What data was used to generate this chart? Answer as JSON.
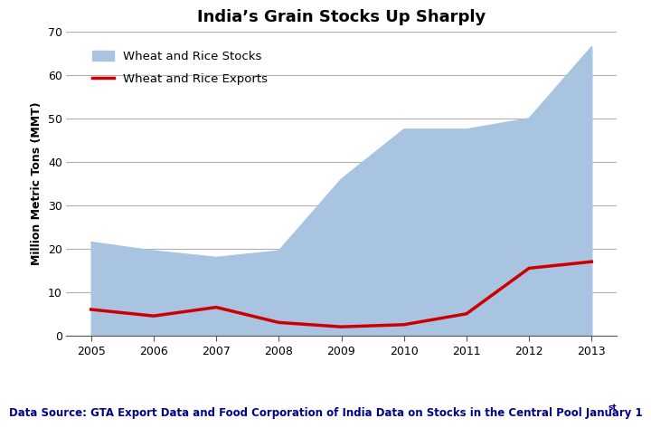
{
  "title": "India’s Grain Stocks Up Sharply",
  "ylabel": "Million Metric Tons (MMT)",
  "footnote": "Data Source: GTA Export Data and Food Corporation of India Data on Stocks in the Central Pool January 1",
  "footnote_super": "st",
  "years": [
    2005,
    2006,
    2007,
    2008,
    2009,
    2010,
    2011,
    2012,
    2013
  ],
  "stocks": [
    21.5,
    19.5,
    18.0,
    19.5,
    36.0,
    47.5,
    47.5,
    50.0,
    66.5
  ],
  "exports": [
    6.0,
    4.5,
    6.5,
    3.0,
    2.0,
    2.5,
    5.0,
    15.5,
    17.0
  ],
  "stocks_fill_color": "#a8c4e0",
  "exports_line_color": "#cc0000",
  "legend_stocks_label": "Wheat and Rice Stocks",
  "legend_exports_label": "Wheat and Rice Exports",
  "ylim": [
    0,
    70
  ],
  "yticks": [
    0,
    10,
    20,
    30,
    40,
    50,
    60,
    70
  ],
  "grid_color": "#b0b0b0",
  "background_color": "#ffffff",
  "title_fontsize": 13,
  "axis_label_fontsize": 9,
  "tick_fontsize": 9,
  "footnote_fontsize": 8.5,
  "exports_linewidth": 2.5,
  "footnote_color": "#00008b"
}
